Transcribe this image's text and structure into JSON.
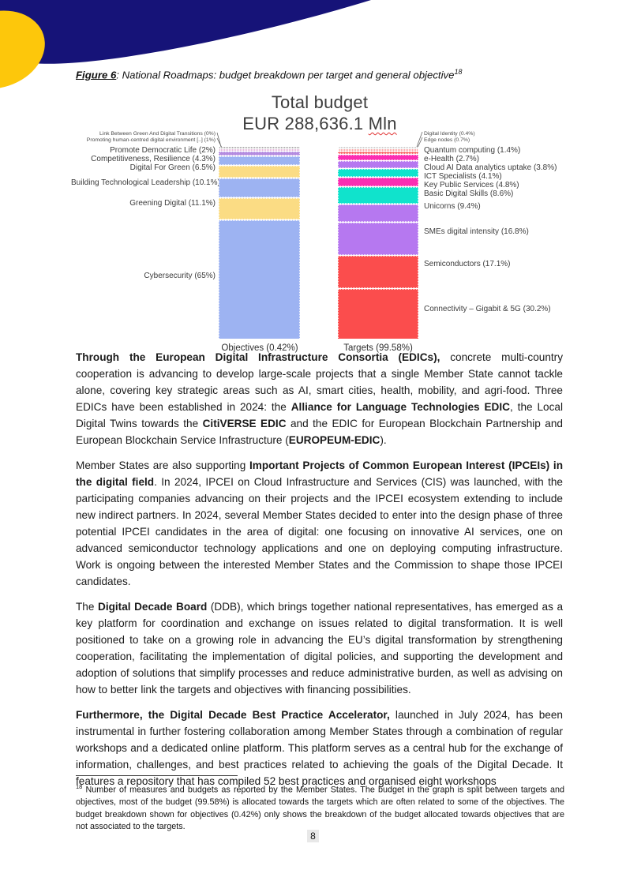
{
  "figure_caption": {
    "label": "Figure 6",
    "text": ": National Roadmaps: budget breakdown per target and general objective",
    "footnote_ref": "18"
  },
  "chart_data": {
    "type": "bar",
    "variant": "stacked-100pct-column",
    "title_line1": "Total budget",
    "subtitle_prefix": "EUR 288,636.1 ",
    "subtitle_unit": "Mln",
    "grid": "off",
    "legend": "none",
    "bars": [
      {
        "axis_label": "Objectives (0.42%)",
        "segments": [
          {
            "label": "Link Between Green And Digital Transitions (0%)",
            "value": 0.0,
            "color": "#b0b0b0",
            "small": true
          },
          {
            "label": "Promoting human-centred digital environment [..] (1%)",
            "value": 1.0,
            "color": "#e2b3d9",
            "small": true
          },
          {
            "label": "Promote Democratic Life (2%)",
            "value": 2.0,
            "color": "#b48ce0"
          },
          {
            "label": "Competitiveness, Resilience (4.3%)",
            "value": 4.3,
            "color": "#9db3f2"
          },
          {
            "label": "Digital For Green (6.5%)",
            "value": 6.5,
            "color": "#fbdc84"
          },
          {
            "label": "Building Technological Leadership (10.1%)",
            "value": 10.1,
            "color": "#9db3f2"
          },
          {
            "label": "Greening Digital (11.1%)",
            "value": 11.1,
            "color": "#fbdc84"
          },
          {
            "label": "Cybersecurity (65%)",
            "value": 65.0,
            "color": "#9db3f2"
          }
        ]
      },
      {
        "axis_label": "Targets (99.58%)",
        "segments": [
          {
            "label": "Digital Identity (0.4%)",
            "value": 0.4,
            "color": "#d0d0d0",
            "small": true
          },
          {
            "label": "Edge nodes (0.7%)",
            "value": 0.7,
            "color": "#f9a0a0",
            "small": true
          },
          {
            "label": "Quantum computing (1.4%)",
            "value": 1.4,
            "color": "#fb6b6b"
          },
          {
            "label": "e-Health (2.7%)",
            "value": 2.7,
            "color": "#fb2eb2"
          },
          {
            "label": "Cloud AI Data analytics uptake (3.8%)",
            "value": 3.8,
            "color": "#b678f0"
          },
          {
            "label": "ICT Specialists (4.1%)",
            "value": 4.1,
            "color": "#10e3cc"
          },
          {
            "label": "Key Public Services (4.8%)",
            "value": 4.8,
            "color": "#fb2eb2"
          },
          {
            "label": "Basic Digital Skills (8.6%)",
            "value": 8.6,
            "color": "#10e3cc"
          },
          {
            "label": "Unicorns (9.4%)",
            "value": 9.4,
            "color": "#b678f0"
          },
          {
            "label": "SMEs digital intensity (16.8%)",
            "value": 16.8,
            "color": "#b678f0"
          },
          {
            "label": "Semiconductors (17.1%)",
            "value": 17.1,
            "color": "#fb4d4d"
          },
          {
            "label": "Connectivity – Gigabit & 5G (30.2%)",
            "value": 30.2,
            "color": "#fb4d4d"
          }
        ]
      }
    ]
  },
  "paragraphs": [
    {
      "runs": [
        {
          "b": true,
          "t": "Through the European Digital Infrastructure Consortia (EDICs),"
        },
        {
          "t": " concrete multi-country cooperation is advancing to develop large-scale projects that a single Member State cannot tackle alone, covering key strategic areas such as AI, smart cities, health, mobility, and agri-food. Three EDICs have been established in 2024: the "
        },
        {
          "b": true,
          "t": "Alliance for Language Technologies EDIC"
        },
        {
          "t": ", the Local Digital Twins towards the "
        },
        {
          "b": true,
          "t": "CitiVERSE EDIC"
        },
        {
          "t": " and the EDIC for European Blockchain Partnership and European Blockchain Service Infrastructure ("
        },
        {
          "b": true,
          "t": "EUROPEUM-EDIC"
        },
        {
          "t": ")."
        }
      ]
    },
    {
      "runs": [
        {
          "t": "Member States are also supporting "
        },
        {
          "b": true,
          "t": "Important Projects of Common European Interest (IPCEIs) in the digital field"
        },
        {
          "t": ". In 2024, IPCEI on Cloud Infrastructure and Services (CIS) was launched, with the participating companies advancing on their projects and the IPCEI ecosystem extending to include new indirect partners. In 2024, several Member States decided to enter into the design phase of three potential IPCEI candidates in the area of digital: one focusing on innovative AI services, one on advanced semiconductor technology applications and one on deploying computing infrastructure. Work is ongoing between the interested Member States and the Commission to shape those IPCEI candidates."
        }
      ]
    },
    {
      "runs": [
        {
          "t": "The "
        },
        {
          "b": true,
          "t": "Digital Decade Board"
        },
        {
          "t": " (DDB), which brings together national representatives, has emerged as a key platform for coordination and exchange on issues related to digital transformation. It is well positioned to take on a growing role in advancing the EU’s digital transformation by strengthening cooperation, facilitating the implementation of digital policies, and supporting the development and adoption of solutions that simplify processes and reduce administrative burden, as well as advising on how to better link the targets and objectives with financing possibilities."
        }
      ]
    },
    {
      "runs": [
        {
          "b": true,
          "t": "Furthermore, the Digital Decade Best Practice Accelerator,"
        },
        {
          "t": " launched in July 2024, has been instrumental in further fostering collaboration among Member States through a combination of regular workshops and a dedicated online platform. This platform serves as a central hub for the exchange of information, challenges, and best practices related to achieving the goals of the Digital Decade. It features a repository that has compiled 52 best practices and organised eight workshops"
        }
      ]
    }
  ],
  "footnote": {
    "ref": "18",
    "text": " Number of measures and budgets as reported by the Member States. The budget in the graph is split between targets and objectives, most of the budget (99.58%) is allocated towards the targets which are often related to some of the objectives. The budget breakdown shown for objectives (0.42%) only shows the breakdown of the budget allocated towards objectives that are not associated to the targets."
  },
  "page": {
    "number": "8"
  },
  "colors": {
    "corner_navy": "#161378",
    "corner_yellow": "#fdc70b",
    "spellcheck_red": "#e03030"
  }
}
